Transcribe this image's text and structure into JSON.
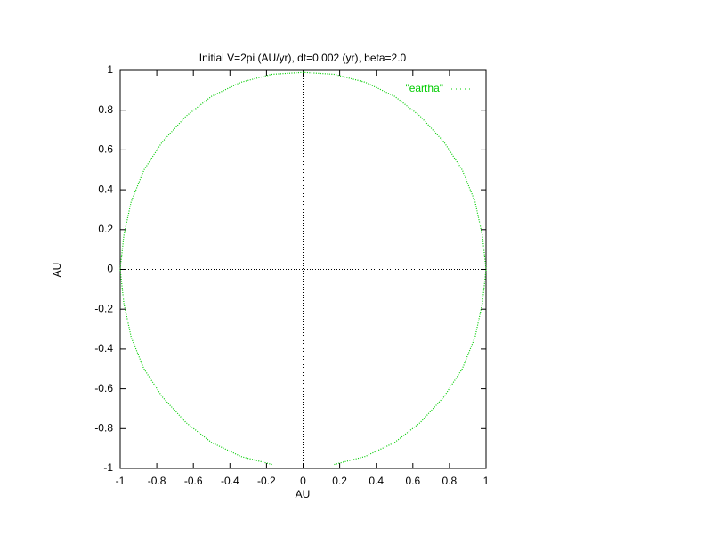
{
  "chart_data": {
    "type": "line",
    "title": "Initial V=2pi (AU/yr), dt=0.002 (yr), beta=2.0",
    "xlabel": "AU",
    "ylabel": "AU",
    "x": [
      0.17,
      0.34,
      0.5,
      0.64,
      0.77,
      0.87,
      0.94,
      0.98,
      1,
      0.98,
      0.94,
      0.87,
      0.77,
      0.64,
      0.5,
      0.34,
      0.17,
      0,
      -0.17,
      -0.34,
      -0.5,
      -0.64,
      -0.77,
      -0.87,
      -0.94,
      -0.98,
      -1,
      -0.98,
      -0.94,
      -0.87,
      -0.77,
      -0.64,
      -0.5,
      -0.34,
      -0.17
    ],
    "series": [
      {
        "name": "\"eartha\"",
        "color": "#00cc00",
        "values": [
          -0.98,
          -0.94,
          -0.87,
          -0.77,
          -0.64,
          -0.5,
          -0.34,
          -0.17,
          0,
          0.17,
          0.34,
          0.5,
          0.64,
          0.77,
          0.87,
          0.94,
          0.98,
          0.99,
          0.98,
          0.94,
          0.87,
          0.77,
          0.64,
          0.5,
          0.34,
          0.17,
          0,
          -0.17,
          -0.34,
          -0.5,
          -0.64,
          -0.77,
          -0.87,
          -0.94,
          -0.98
        ]
      }
    ],
    "xlim": [
      -1,
      1
    ],
    "ylim": [
      -1,
      1
    ],
    "xticks": [
      -1,
      -0.8,
      -0.6,
      -0.4,
      -0.2,
      0,
      0.2,
      0.4,
      0.6,
      0.8,
      1
    ],
    "yticks": [
      -1,
      -0.8,
      -0.6,
      -0.4,
      -0.2,
      0,
      0.2,
      0.4,
      0.6,
      0.8,
      1
    ],
    "zeroaxis": true,
    "grid": false,
    "legend": "top-right"
  }
}
